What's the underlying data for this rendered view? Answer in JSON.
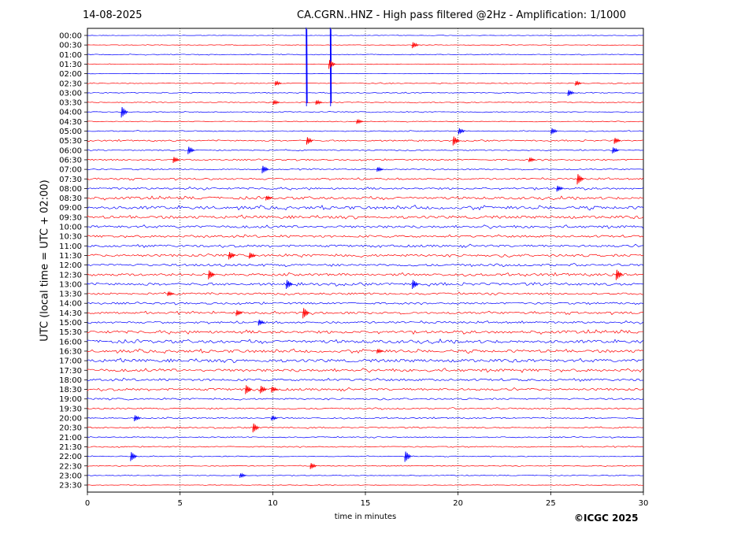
{
  "header": {
    "date": "14-08-2025",
    "title": "CA.CGRN..HNZ - High pass filtered @2Hz - Amplification: 1/1000"
  },
  "footer": {
    "copyright": "©ICGC 2025"
  },
  "chart_data": {
    "type": "line",
    "title": "CA.CGRN..HNZ - High pass filtered @2Hz - Amplification: 1/1000",
    "xlabel": "time in minutes",
    "ylabel": "UTC (local time = UTC + 02:00)",
    "xlim": [
      0,
      30
    ],
    "x_ticks": [
      0,
      5,
      10,
      15,
      20,
      25,
      30
    ],
    "grid": "vertical dotted at each x tick",
    "colors": {
      "even_row": "#0000ff",
      "odd_row": "#ff0000"
    },
    "rows": [
      "00:00",
      "00:30",
      "01:00",
      "01:30",
      "02:00",
      "02:30",
      "03:00",
      "03:30",
      "04:00",
      "04:30",
      "05:00",
      "05:30",
      "06:00",
      "06:30",
      "07:00",
      "07:30",
      "08:00",
      "08:30",
      "09:00",
      "09:30",
      "10:00",
      "10:30",
      "11:00",
      "11:30",
      "12:00",
      "12:30",
      "13:00",
      "13:30",
      "14:00",
      "14:30",
      "15:00",
      "15:30",
      "16:00",
      "16:30",
      "17:00",
      "17:30",
      "18:00",
      "18:30",
      "19:00",
      "19:30",
      "20:00",
      "20:30",
      "21:00",
      "21:30",
      "22:00",
      "22:30",
      "23:00",
      "23:30"
    ],
    "noise_level": [
      0.2,
      0.2,
      0.3,
      0.2,
      0.1,
      0.3,
      0.3,
      0.3,
      0.3,
      0.3,
      0.35,
      0.5,
      0.4,
      0.5,
      0.45,
      0.6,
      0.7,
      0.9,
      1.1,
      1.0,
      0.9,
      0.8,
      0.8,
      0.9,
      0.8,
      0.9,
      0.9,
      0.7,
      0.7,
      0.8,
      0.7,
      1.0,
      1.1,
      1.0,
      1.1,
      1.0,
      0.8,
      0.8,
      0.6,
      0.5,
      0.45,
      0.45,
      0.4,
      0.4,
      0.3,
      0.3,
      0.25,
      0.2
    ],
    "events": [
      {
        "row": "00:00",
        "minute": 11.8,
        "amplitude": 90
      },
      {
        "row": "00:00",
        "minute": 13.1,
        "amplitude": 90
      },
      {
        "row": "00:30",
        "minute": 17.7,
        "amplitude": 4
      },
      {
        "row": "01:30",
        "minute": 13.2,
        "amplitude": 6
      },
      {
        "row": "02:30",
        "minute": 10.3,
        "amplitude": 3
      },
      {
        "row": "02:30",
        "minute": 26.5,
        "amplitude": 3
      },
      {
        "row": "03:00",
        "minute": 26.1,
        "amplitude": 4
      },
      {
        "row": "03:30",
        "minute": 10.2,
        "amplitude": 3
      },
      {
        "row": "03:30",
        "minute": 12.5,
        "amplitude": 3
      },
      {
        "row": "04:00",
        "minute": 2.0,
        "amplitude": 7
      },
      {
        "row": "04:30",
        "minute": 14.7,
        "amplitude": 3
      },
      {
        "row": "05:00",
        "minute": 20.2,
        "amplitude": 4
      },
      {
        "row": "05:00",
        "minute": 25.2,
        "amplitude": 4
      },
      {
        "row": "05:30",
        "minute": 12.0,
        "amplitude": 5
      },
      {
        "row": "05:30",
        "minute": 19.9,
        "amplitude": 6
      },
      {
        "row": "05:30",
        "minute": 28.6,
        "amplitude": 4
      },
      {
        "row": "06:00",
        "minute": 5.6,
        "amplitude": 5
      },
      {
        "row": "06:00",
        "minute": 28.5,
        "amplitude": 4
      },
      {
        "row": "06:30",
        "minute": 4.8,
        "amplitude": 4
      },
      {
        "row": "06:30",
        "minute": 24.0,
        "amplitude": 3
      },
      {
        "row": "07:00",
        "minute": 9.6,
        "amplitude": 5
      },
      {
        "row": "07:00",
        "minute": 15.8,
        "amplitude": 3
      },
      {
        "row": "07:30",
        "minute": 26.6,
        "amplitude": 7
      },
      {
        "row": "08:00",
        "minute": 25.5,
        "amplitude": 4
      },
      {
        "row": "08:30",
        "minute": 9.8,
        "amplitude": 3
      },
      {
        "row": "11:30",
        "minute": 7.8,
        "amplitude": 5
      },
      {
        "row": "11:30",
        "minute": 8.9,
        "amplitude": 4
      },
      {
        "row": "12:30",
        "minute": 6.7,
        "amplitude": 6
      },
      {
        "row": "12:30",
        "minute": 28.7,
        "amplitude": 7
      },
      {
        "row": "13:00",
        "minute": 10.9,
        "amplitude": 6
      },
      {
        "row": "13:00",
        "minute": 17.7,
        "amplitude": 6
      },
      {
        "row": "13:30",
        "minute": 4.5,
        "amplitude": 3
      },
      {
        "row": "14:30",
        "minute": 8.2,
        "amplitude": 4
      },
      {
        "row": "14:30",
        "minute": 11.8,
        "amplitude": 7
      },
      {
        "row": "15:00",
        "minute": 9.4,
        "amplitude": 4
      },
      {
        "row": "16:30",
        "minute": 15.8,
        "amplitude": 3
      },
      {
        "row": "18:30",
        "minute": 8.7,
        "amplitude": 6
      },
      {
        "row": "18:30",
        "minute": 9.5,
        "amplitude": 5
      },
      {
        "row": "18:30",
        "minute": 10.1,
        "amplitude": 4
      },
      {
        "row": "20:00",
        "minute": 2.7,
        "amplitude": 4
      },
      {
        "row": "20:00",
        "minute": 10.1,
        "amplitude": 3
      },
      {
        "row": "20:30",
        "minute": 9.1,
        "amplitude": 6
      },
      {
        "row": "22:00",
        "minute": 2.5,
        "amplitude": 6
      },
      {
        "row": "22:00",
        "minute": 17.3,
        "amplitude": 7
      },
      {
        "row": "22:30",
        "minute": 12.2,
        "amplitude": 4
      },
      {
        "row": "23:00",
        "minute": 8.4,
        "amplitude": 3
      }
    ]
  }
}
